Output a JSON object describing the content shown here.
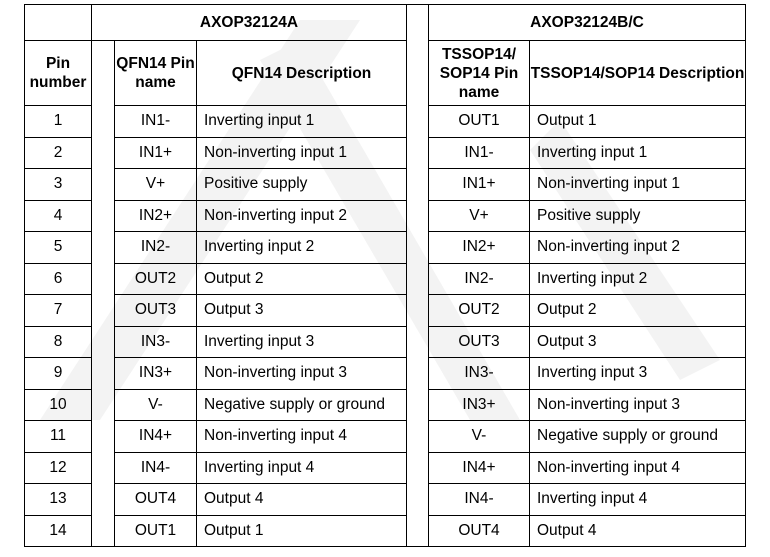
{
  "header": {
    "variant_a": "AXOP32124A",
    "variant_bc": "AXOP32124B/C",
    "pin_number": "Pin number",
    "qfn_pin_name": "QFN14 Pin name",
    "qfn_description": "QFN14 Description",
    "tssop_pin_name": "TSSOP14/ SOP14 Pin name",
    "tssop_description": "TSSOP14/SOP14 Description"
  },
  "rows": [
    {
      "pin": "1",
      "qfn_name": "IN1-",
      "qfn_desc": "Inverting input 1",
      "tssop_name": "OUT1",
      "tssop_desc": "Output 1"
    },
    {
      "pin": "2",
      "qfn_name": "IN1+",
      "qfn_desc": "Non-inverting input 1",
      "tssop_name": "IN1-",
      "tssop_desc": "Inverting input 1"
    },
    {
      "pin": "3",
      "qfn_name": "V+",
      "qfn_desc": "Positive supply",
      "tssop_name": "IN1+",
      "tssop_desc": "Non-inverting input 1"
    },
    {
      "pin": "4",
      "qfn_name": "IN2+",
      "qfn_desc": "Non-inverting input 2",
      "tssop_name": "V+",
      "tssop_desc": "Positive supply"
    },
    {
      "pin": "5",
      "qfn_name": "IN2-",
      "qfn_desc": "Inverting input 2",
      "tssop_name": "IN2+",
      "tssop_desc": "Non-inverting input 2"
    },
    {
      "pin": "6",
      "qfn_name": "OUT2",
      "qfn_desc": "Output 2",
      "tssop_name": "IN2-",
      "tssop_desc": "Inverting input 2"
    },
    {
      "pin": "7",
      "qfn_name": "OUT3",
      "qfn_desc": "Output 3",
      "tssop_name": "OUT2",
      "tssop_desc": "Output 2"
    },
    {
      "pin": "8",
      "qfn_name": "IN3-",
      "qfn_desc": "Inverting input 3",
      "tssop_name": "OUT3",
      "tssop_desc": "Output 3"
    },
    {
      "pin": "9",
      "qfn_name": "IN3+",
      "qfn_desc": "Non-inverting input 3",
      "tssop_name": "IN3-",
      "tssop_desc": "Inverting input 3"
    },
    {
      "pin": "10",
      "qfn_name": "V-",
      "qfn_desc": "Negative supply or ground",
      "tssop_name": "IN3+",
      "tssop_desc": "Non-inverting input 3"
    },
    {
      "pin": "11",
      "qfn_name": "IN4+",
      "qfn_desc": "Non-inverting input 4",
      "tssop_name": "V-",
      "tssop_desc": "Negative supply or ground"
    },
    {
      "pin": "12",
      "qfn_name": "IN4-",
      "qfn_desc": "Inverting input 4",
      "tssop_name": "IN4+",
      "tssop_desc": "Non-inverting input 4"
    },
    {
      "pin": "13",
      "qfn_name": "OUT4",
      "qfn_desc": "Output 4",
      "tssop_name": "IN4-",
      "tssop_desc": "Inverting input 4"
    },
    {
      "pin": "14",
      "qfn_name": "OUT1",
      "qfn_desc": "Output 1",
      "tssop_name": "OUT4",
      "tssop_desc": "Output 4"
    }
  ]
}
